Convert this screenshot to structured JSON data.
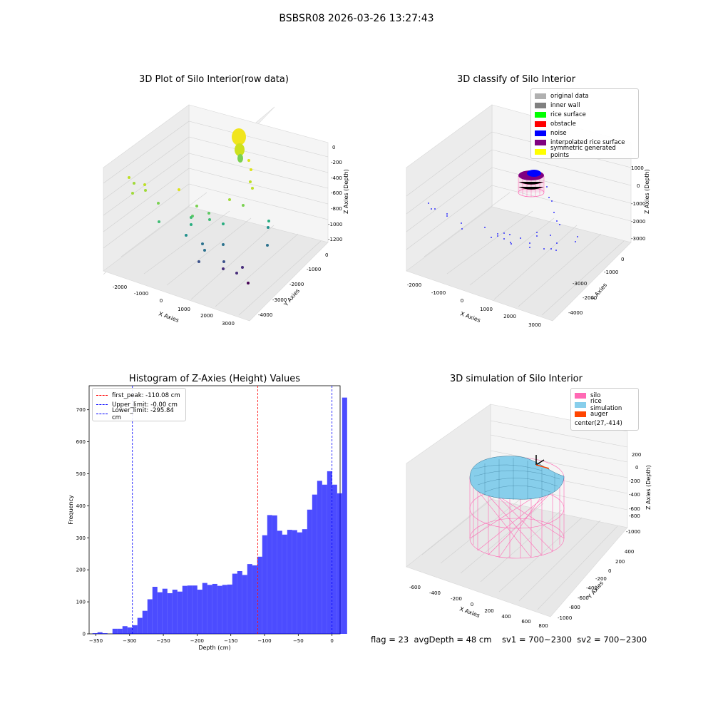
{
  "suptitle": "BSBSR08 2026-03-26 13:27:43",
  "status_line": "flag = 23  avgDepth = 48 cm    sv1 = 700~2300  sv2 = 700~2300",
  "panels": {
    "raw": {
      "title": "3D Plot of Silo Interior(row data)",
      "xlabel": "X Axies",
      "ylabel": "Y Axies",
      "zlabel": "Z Axies (Depth)",
      "xticks": [
        "-2000",
        "-1000",
        "0",
        "1000",
        "2000",
        "3000"
      ],
      "yticks": [
        "0",
        "-1000",
        "-2000",
        "-3000",
        "-4000"
      ],
      "zticks": [
        "0",
        "-200",
        "-400",
        "-600",
        "-800",
        "-1000",
        "-1200"
      ]
    },
    "classify": {
      "title": "3D classify of Silo Interior",
      "xlabel": "X Axies",
      "ylabel": "Y Axies",
      "zlabel": "Z Axies (Depth)",
      "xticks": [
        "-2000",
        "-1000",
        "0",
        "1000",
        "2000",
        "3000"
      ],
      "yticks": [
        "0",
        "-1000",
        "-2000",
        "-3000",
        "-4000"
      ],
      "zticks": [
        "1000",
        "0",
        "-1000",
        "-2000",
        "-3000"
      ],
      "legend": [
        {
          "label": "original data",
          "color": "#b0b0b0"
        },
        {
          "label": "inner wall",
          "color": "#808080"
        },
        {
          "label": "rice surface",
          "color": "#00ff00"
        },
        {
          "label": "obstacle",
          "color": "#ff0000"
        },
        {
          "label": "noise",
          "color": "#0000ff"
        },
        {
          "label": "interpolated rice surface",
          "color": "#800080"
        },
        {
          "label": "symmetric generated points",
          "color": "#ffff00"
        }
      ]
    },
    "sim": {
      "title": "3D simulation of Silo Interior",
      "xlabel": "X Axies",
      "ylabel": "Y Axies",
      "zlabel": "Z Axies (Depth)",
      "xticks": [
        "-600",
        "-400",
        "-200",
        "0",
        "200",
        "400",
        "600",
        "800"
      ],
      "yticks": [
        "400",
        "200",
        "0",
        "-200",
        "-400",
        "-600",
        "-800",
        "-1000"
      ],
      "zticks": [
        "200",
        "0",
        "-200",
        "-400",
        "-600",
        "-800",
        "-1000"
      ],
      "legend": [
        {
          "label": "silo",
          "color": "#ff69b4"
        },
        {
          "label": "rice simulation",
          "color": "#87ceeb"
        },
        {
          "label": "auger",
          "color": "#ff4500"
        },
        {
          "label": "center(27,-414)",
          "color": ""
        }
      ]
    }
  },
  "chart_data": [
    {
      "type": "bar",
      "title": "Histogram of Z-Axies (Height) Values",
      "xlabel": "Depth (cm)",
      "ylabel": "Frequency",
      "xlim": [
        -360,
        12
      ],
      "ylim": [
        0,
        775
      ],
      "xticks": [
        -350,
        -300,
        -250,
        -200,
        -150,
        -100,
        -50,
        0
      ],
      "yticks": [
        0,
        100,
        200,
        300,
        400,
        500,
        600,
        700
      ],
      "bar_color": "#0000ff",
      "bin_width": 7.4,
      "bin_start": -355,
      "values": [
        2,
        5,
        2,
        0,
        16,
        16,
        24,
        20,
        27,
        50,
        72,
        108,
        147,
        130,
        141,
        127,
        138,
        132,
        150,
        151,
        151,
        138,
        159,
        153,
        156,
        150,
        153,
        154,
        188,
        196,
        184,
        218,
        214,
        241,
        308,
        371,
        370,
        322,
        310,
        325,
        324,
        317,
        327,
        388,
        435,
        478,
        466,
        508,
        466,
        439,
        738
      ],
      "vlines": [
        {
          "x": -110.08,
          "color": "#ff0000",
          "label": "first_peak: -110.08 cm"
        },
        {
          "x": -0.0,
          "color": "#0000ff",
          "label": "Upper_limit: -0.00 cm"
        },
        {
          "x": -295.84,
          "color": "#0000ff",
          "label": "Lower_limit: -295.84 cm"
        }
      ],
      "legend_position": "top-left"
    }
  ]
}
